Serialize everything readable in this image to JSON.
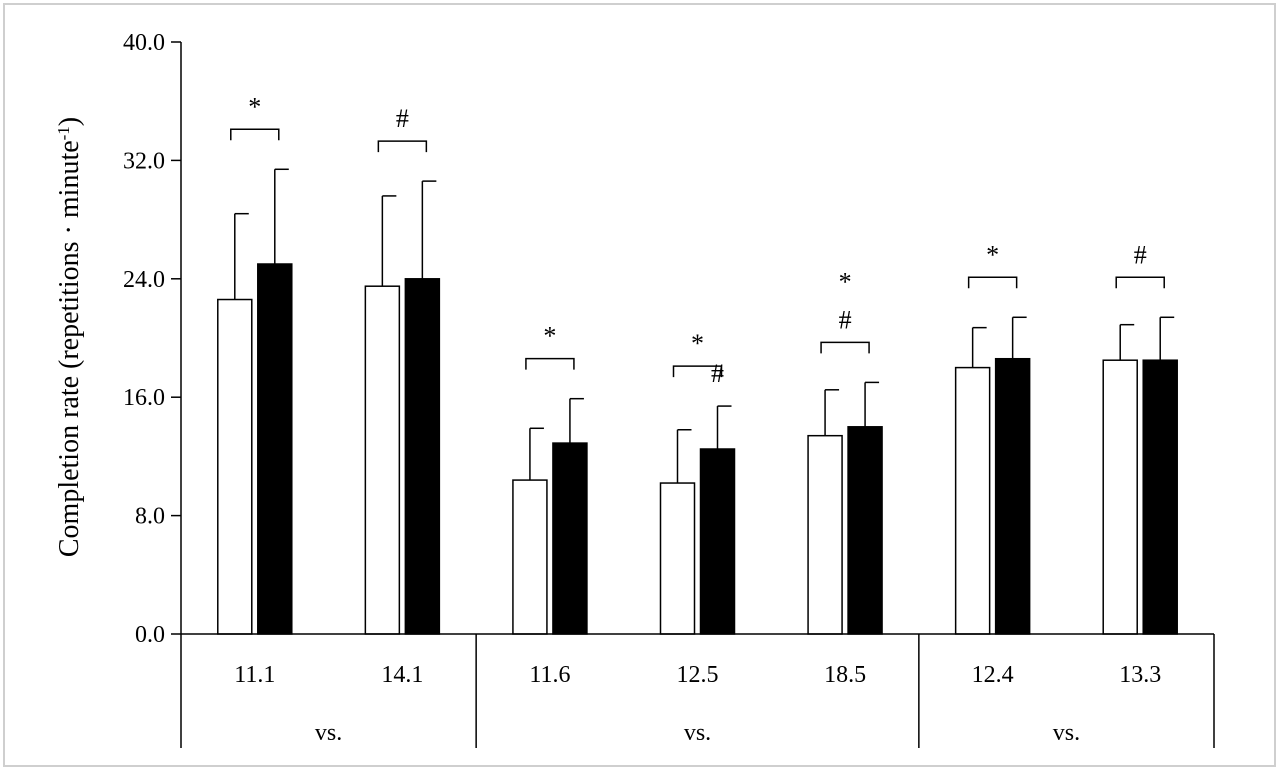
{
  "chart_data": {
    "type": "bar",
    "ylabel_main": "Completion rate (repetitions · minute",
    "ylabel_sup": "-1",
    "ylabel_end": ")",
    "ylim": [
      0,
      40
    ],
    "yticks": [
      "0.0",
      "8.0",
      "16.0",
      "24.0",
      "32.0",
      "40.0"
    ],
    "ytick_values": [
      0,
      8,
      16,
      24,
      32,
      40
    ],
    "categories": [
      "11.1",
      "14.1",
      "11.6",
      "12.5",
      "18.5",
      "12.4",
      "13.3"
    ],
    "groups": [
      {
        "label": "vs.",
        "start": 0,
        "end": 1
      },
      {
        "label": "vs.",
        "start": 2,
        "end": 4
      },
      {
        "label": "vs.",
        "start": 5,
        "end": 6
      }
    ],
    "series": [
      {
        "color": "#ffffff",
        "values": [
          22.6,
          23.5,
          10.4,
          10.2,
          13.4,
          18.0,
          18.5
        ],
        "errors": [
          5.8,
          6.1,
          3.5,
          3.6,
          3.1,
          2.7,
          2.4
        ]
      },
      {
        "color": "#000000",
        "values": [
          25.0,
          24.0,
          12.9,
          12.5,
          14.0,
          18.6,
          18.5
        ],
        "errors": [
          6.4,
          6.6,
          3.0,
          2.9,
          3.0,
          2.8,
          2.9
        ]
      }
    ],
    "annotations": [
      {
        "category": 0,
        "symbols": [
          "*"
        ],
        "bracket": true
      },
      {
        "category": 1,
        "symbols": [
          "#"
        ],
        "bracket": true
      },
      {
        "category": 2,
        "symbols": [
          "*"
        ],
        "bracket": true
      },
      {
        "category": 3,
        "symbols": [
          "*"
        ],
        "bracket": true
      },
      {
        "category": 3,
        "symbols": [
          "#"
        ],
        "bracket": false
      },
      {
        "category": 4,
        "symbols": [
          "*",
          "#"
        ],
        "bracket": true
      },
      {
        "category": 5,
        "symbols": [
          "*"
        ],
        "bracket": true
      },
      {
        "category": 6,
        "symbols": [
          "#"
        ],
        "bracket": true
      }
    ],
    "grid": false,
    "legend": "none"
  }
}
